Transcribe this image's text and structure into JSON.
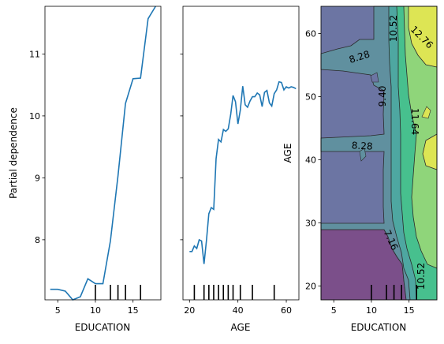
{
  "chart_data": [
    {
      "type": "line",
      "xlabel": "EDUCATION",
      "ylabel": "Partial dependence",
      "xlim": [
        3.3,
        18.7
      ],
      "ylim": [
        7.03,
        11.77
      ],
      "xticks": [
        5,
        10,
        15
      ],
      "yticks": [
        8,
        9,
        10,
        11
      ],
      "line_color": "#1f77b4",
      "x": [
        4,
        5,
        6,
        7,
        8,
        9,
        10,
        11,
        12,
        13,
        14,
        15,
        16,
        17,
        18
      ],
      "y": [
        7.2,
        7.2,
        7.17,
        7.03,
        7.08,
        7.37,
        7.29,
        7.29,
        7.98,
        9.03,
        10.2,
        10.6,
        10.61,
        11.57,
        11.77
      ],
      "deciles": [
        10,
        12,
        13,
        14,
        16
      ]
    },
    {
      "type": "line",
      "xlabel": "AGE",
      "ylabel": "",
      "xlim": [
        17.3,
        65.2
      ],
      "ylim": [
        7.03,
        11.77
      ],
      "xticks": [
        20,
        40,
        60
      ],
      "line_color": "#1f77b4",
      "x": [
        20,
        21,
        22,
        23,
        24,
        25,
        26,
        27,
        28,
        29,
        30,
        31,
        32,
        33,
        34,
        35,
        36,
        37,
        38,
        39,
        40,
        41,
        42,
        43,
        44,
        45,
        46,
        47,
        48,
        49,
        50,
        51,
        52,
        53,
        54,
        55,
        56,
        57,
        58,
        59,
        60,
        61,
        62,
        63,
        64
      ],
      "y": [
        7.81,
        7.81,
        7.9,
        7.86,
        8.0,
        7.98,
        7.61,
        7.99,
        8.42,
        8.52,
        8.49,
        9.31,
        9.62,
        9.58,
        9.78,
        9.75,
        9.79,
        10.02,
        10.33,
        10.23,
        9.87,
        10.09,
        10.48,
        10.18,
        10.14,
        10.24,
        10.31,
        10.31,
        10.37,
        10.34,
        10.15,
        10.38,
        10.41,
        10.21,
        10.16,
        10.36,
        10.42,
        10.55,
        10.54,
        10.42,
        10.47,
        10.45,
        10.47,
        10.46,
        10.44
      ],
      "deciles": [
        22,
        26,
        28,
        30,
        32,
        34,
        36,
        38,
        41,
        46,
        55
      ]
    },
    {
      "type": "heatmap",
      "xlabel": "EDUCATION",
      "ylabel": "AGE",
      "xlim": [
        3.3,
        18.7
      ],
      "ylim": [
        17.8,
        64.3
      ],
      "xticks": [
        5,
        10,
        15
      ],
      "yticks": [
        20,
        30,
        40,
        50,
        60
      ],
      "contour_labels": [
        "10.52",
        "12.76",
        "8.28",
        "9.40",
        "11.64",
        "8.28",
        "7.16",
        "10.52"
      ],
      "levels": [
        7.16,
        8.28,
        9.4,
        10.52,
        11.64,
        12.76
      ],
      "deciles_x": [
        10,
        12,
        13,
        14,
        16
      ],
      "deciles_y": [
        22,
        26,
        28,
        30,
        32,
        34,
        36,
        38,
        41,
        46,
        55
      ]
    }
  ]
}
